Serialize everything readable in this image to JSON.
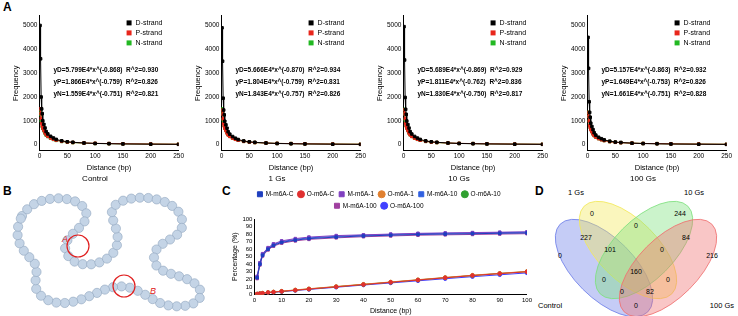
{
  "panel_labels": [
    "A",
    "B",
    "C",
    "D"
  ],
  "chart_data": [
    {
      "type": "line",
      "subtitle": "Control",
      "x_label": "Distance (bp)",
      "y_label": "Frequency",
      "x": [
        1,
        2,
        3,
        4,
        5,
        6,
        8,
        10,
        12,
        15,
        20,
        25,
        30,
        40,
        50,
        60,
        80,
        100,
        125,
        150,
        200,
        250
      ],
      "xlim": [
        0,
        250
      ],
      "xticks": [
        0,
        50,
        100,
        150,
        200,
        250
      ],
      "ylim": [
        -250,
        5400
      ],
      "yticks": [
        0,
        1000,
        2000,
        3000,
        4000,
        5000
      ],
      "grid": false,
      "legend": "upper right",
      "annotations": [
        "yD=5.799E4*x^(-0.868)  R^2=0.930",
        "yP=1.866E4*x^(-0.759)  R^2=0.826",
        "yN=1.559E4*x^(-0.751)  R^2=0.821"
      ],
      "series": [
        {
          "name": "D-strand",
          "color": "#000000",
          "marker": "square",
          "line_style": "solid",
          "values": [
            5000,
            3600,
            2000,
            1500,
            1300,
            1000,
            850,
            700,
            550,
            450,
            350,
            280,
            220,
            160,
            120,
            100,
            70,
            50,
            40,
            30,
            20,
            12
          ]
        },
        {
          "name": "P-strand",
          "color": "#e8261c",
          "marker": "square",
          "line_style": "solid",
          "values": [
            1500,
            1300,
            1100,
            900,
            800,
            700,
            600,
            500,
            420,
            350,
            280,
            230,
            190,
            140,
            110,
            90,
            70,
            55,
            45,
            35,
            25,
            18
          ]
        },
        {
          "name": "N-strand",
          "color": "#22b822",
          "marker": "square",
          "line_style": "solid",
          "values": [
            1400,
            1250,
            1000,
            950,
            750,
            680,
            580,
            480,
            400,
            340,
            270,
            220,
            180,
            135,
            105,
            85,
            65,
            50,
            42,
            33,
            24,
            17
          ]
        }
      ]
    },
    {
      "type": "line",
      "subtitle": "1 Gs",
      "x_label": "Distance (bp)",
      "y_label": "Frequency",
      "x": [
        1,
        2,
        3,
        4,
        5,
        6,
        8,
        10,
        12,
        15,
        20,
        25,
        30,
        40,
        50,
        60,
        80,
        100,
        125,
        150,
        200,
        250
      ],
      "xlim": [
        0,
        250
      ],
      "xticks": [
        0,
        50,
        100,
        150,
        200,
        250
      ],
      "ylim": [
        -250,
        5400
      ],
      "yticks": [
        0,
        1000,
        2000,
        3000,
        4000,
        5000
      ],
      "grid": false,
      "legend": "upper right",
      "annotations": [
        "yD=5.666E4*x^(-0.870)  R^2=0.934",
        "yP=1.804E4*x^(-0.759)  R^2=0.831",
        "yN=1.843E4*x^(-0.757)  R^2=0.826"
      ],
      "series": [
        {
          "name": "D-strand",
          "color": "#000000",
          "marker": "square",
          "line_style": "solid",
          "values": [
            4900,
            3500,
            1950,
            1450,
            1250,
            980,
            830,
            690,
            540,
            440,
            340,
            270,
            215,
            155,
            118,
            98,
            68,
            48,
            38,
            29,
            19,
            11
          ]
        },
        {
          "name": "P-strand",
          "color": "#e8261c",
          "marker": "square",
          "line_style": "solid",
          "values": [
            1450,
            1280,
            1080,
            880,
            780,
            690,
            590,
            490,
            410,
            345,
            275,
            225,
            185,
            138,
            108,
            88,
            68,
            53,
            44,
            34,
            24,
            17
          ]
        },
        {
          "name": "N-strand",
          "color": "#22b822",
          "marker": "square",
          "line_style": "solid",
          "values": [
            1500,
            1300,
            1050,
            960,
            790,
            700,
            600,
            495,
            415,
            350,
            278,
            226,
            186,
            139,
            108,
            87,
            67,
            52,
            43,
            34,
            25,
            18
          ]
        }
      ]
    },
    {
      "type": "line",
      "subtitle": "10 Gs",
      "x_label": "Distance (bp)",
      "y_label": "Frequency",
      "x": [
        1,
        2,
        3,
        4,
        5,
        6,
        8,
        10,
        12,
        15,
        20,
        25,
        30,
        40,
        50,
        60,
        80,
        100,
        125,
        150,
        200,
        250
      ],
      "xlim": [
        0,
        250
      ],
      "xticks": [
        0,
        50,
        100,
        150,
        200,
        250
      ],
      "ylim": [
        -250,
        5400
      ],
      "yticks": [
        0,
        1000,
        2000,
        3000,
        4000,
        5000
      ],
      "grid": false,
      "legend": "upper right",
      "annotations": [
        "yD=5.689E4*x^(-0.869)  R^2=0.929",
        "yP=1.811E4*x^(-0.762)  R^2=0.836",
        "yN=1.830E4*x^(-0.750)  R^2=0.817"
      ],
      "series": [
        {
          "name": "D-strand",
          "color": "#000000",
          "marker": "square",
          "line_style": "solid",
          "values": [
            4950,
            3550,
            1980,
            1480,
            1270,
            990,
            840,
            695,
            545,
            445,
            345,
            275,
            218,
            158,
            119,
            99,
            69,
            49,
            39,
            30,
            20,
            12
          ]
        },
        {
          "name": "P-strand",
          "color": "#e8261c",
          "marker": "square",
          "line_style": "solid",
          "values": [
            1460,
            1290,
            1090,
            890,
            790,
            695,
            595,
            492,
            412,
            346,
            276,
            226,
            186,
            139,
            109,
            89,
            69,
            54,
            44,
            34,
            24,
            17
          ]
        },
        {
          "name": "N-strand",
          "color": "#22b822",
          "marker": "square",
          "line_style": "solid",
          "values": [
            1480,
            1290,
            1040,
            955,
            780,
            695,
            595,
            490,
            412,
            348,
            276,
            224,
            185,
            138,
            107,
            86,
            66,
            51,
            43,
            33,
            24,
            17
          ]
        }
      ]
    },
    {
      "type": "line",
      "subtitle": "100 Gs",
      "x_label": "Distance (bp)",
      "y_label": "Frequency",
      "x": [
        1,
        2,
        3,
        4,
        5,
        6,
        8,
        10,
        12,
        15,
        20,
        25,
        30,
        40,
        50,
        60,
        80,
        100,
        125,
        150,
        200,
        250
      ],
      "xlim": [
        0,
        250
      ],
      "xticks": [
        0,
        50,
        100,
        150,
        200,
        250
      ],
      "ylim": [
        -250,
        5400
      ],
      "yticks": [
        0,
        1000,
        2000,
        3000,
        4000,
        5000
      ],
      "grid": false,
      "legend": "upper right",
      "annotations": [
        "yD=5.157E4*x^(-0.863)  R^2=0.932",
        "yP=1.649E4*x^(-0.753)  R^2=0.826",
        "yN=1.661E4*x^(-0.751)  R^2=0.828"
      ],
      "series": [
        {
          "name": "D-strand",
          "color": "#000000",
          "marker": "square",
          "line_style": "solid",
          "values": [
            4500,
            3200,
            1800,
            1350,
            1150,
            900,
            760,
            630,
            500,
            400,
            310,
            250,
            200,
            145,
            108,
            90,
            62,
            45,
            36,
            27,
            18,
            10
          ]
        },
        {
          "name": "P-strand",
          "color": "#e8261c",
          "marker": "square",
          "line_style": "solid",
          "values": [
            1350,
            1180,
            990,
            810,
            720,
            630,
            540,
            450,
            380,
            318,
            252,
            207,
            171,
            126,
            99,
            81,
            63,
            50,
            41,
            32,
            23,
            16
          ]
        },
        {
          "name": "N-strand",
          "color": "#22b822",
          "marker": "square",
          "line_style": "solid",
          "values": [
            1360,
            1190,
            1000,
            820,
            725,
            635,
            545,
            452,
            382,
            320,
            254,
            208,
            172,
            127,
            100,
            82,
            63,
            50,
            41,
            32,
            23,
            16
          ]
        }
      ]
    },
    {
      "type": "line",
      "x_label": "Distance (bp)",
      "y_label": "Percentage (%)",
      "x": [
        1,
        2,
        3,
        5,
        7,
        10,
        15,
        20,
        30,
        40,
        50,
        60,
        70,
        80,
        90,
        100
      ],
      "xlim": [
        0,
        100
      ],
      "xticks": [
        0,
        10,
        20,
        30,
        40,
        50,
        60,
        70,
        80,
        90,
        100
      ],
      "ylim": [
        0,
        100
      ],
      "yticks": [
        0,
        10,
        20,
        30,
        40,
        50,
        60,
        70,
        80,
        90,
        100
      ],
      "grid": false,
      "legend": "top",
      "series": [
        {
          "name": "M-m6A-C",
          "color": "#1f3fbf",
          "marker": "square",
          "line_style": "solid",
          "values": [
            22,
            40,
            52,
            60,
            65,
            69,
            72,
            74,
            76,
            77.5,
            78.5,
            79.5,
            80,
            80.5,
            81,
            81.5
          ]
        },
        {
          "name": "O-m6A-C",
          "color": "#e03030",
          "marker": "circle",
          "line_style": "solid",
          "values": [
            0.5,
            1,
            1.5,
            2.5,
            3,
            4,
            5.5,
            7,
            10,
            13,
            16,
            19,
            22,
            25,
            27.5,
            30
          ]
        },
        {
          "name": "M-m6A-1",
          "color": "#8040c0",
          "marker": "square",
          "line_style": "solid",
          "values": [
            24,
            42,
            54,
            62,
            67,
            71,
            74,
            76,
            78,
            79,
            80,
            81,
            81.5,
            82,
            82.5,
            83
          ]
        },
        {
          "name": "O-m6A-1",
          "color": "#e08030",
          "marker": "circle",
          "line_style": "solid",
          "values": [
            0.6,
            1.1,
            1.7,
            2.7,
            3.3,
            4.3,
            6,
            7.5,
            10.5,
            13.5,
            16.5,
            19.5,
            22.5,
            25.5,
            28,
            30.5
          ]
        },
        {
          "name": "M-m6A-10",
          "color": "#3060e0",
          "marker": "square",
          "line_style": "solid",
          "values": [
            23,
            41,
            53,
            61,
            66,
            70,
            73,
            75,
            77,
            78.5,
            79.5,
            80.5,
            81,
            81.5,
            82,
            82.5
          ]
        },
        {
          "name": "O-m6A-10",
          "color": "#30a030",
          "marker": "circle",
          "line_style": "solid",
          "values": [
            0.5,
            1,
            1.6,
            2.6,
            3.1,
            4.1,
            5.7,
            7.2,
            10.2,
            13.2,
            16.2,
            19.2,
            22.2,
            25,
            27.8,
            30.2
          ]
        },
        {
          "name": "M-m6A-100",
          "color": "#a040a0",
          "marker": "square",
          "line_style": "solid",
          "values": [
            21,
            39,
            51,
            59,
            64,
            68,
            71,
            73,
            75,
            76.5,
            77.5,
            78.5,
            79,
            79.5,
            80,
            80.5
          ]
        },
        {
          "name": "O-m6A-100",
          "color": "#4040ff",
          "marker": "circle",
          "line_style": "solid",
          "values": [
            0.4,
            0.9,
            1.4,
            2.3,
            2.8,
            3.7,
            5.2,
            6.6,
            9.5,
            12.4,
            15.2,
            18,
            20.8,
            23.5,
            26,
            28.5
          ]
        }
      ]
    }
  ],
  "diagram": {
    "markers": [
      "A",
      "B"
    ]
  },
  "venn": {
    "sets": [
      {
        "name": "Control",
        "color": "#6f7fe8"
      },
      {
        "name": "1 Gs",
        "color": "#f2e85a"
      },
      {
        "name": "10 Gs",
        "color": "#7ee07e"
      },
      {
        "name": "100 Gs",
        "color": "#f07070"
      }
    ],
    "regions": [
      {
        "sets": [
          "Control"
        ],
        "value": 0
      },
      {
        "sets": [
          "1 Gs"
        ],
        "value": 0
      },
      {
        "sets": [
          "10 Gs"
        ],
        "value": 244
      },
      {
        "sets": [
          "100 Gs"
        ],
        "value": 216
      },
      {
        "sets": [
          "Control",
          "1 Gs"
        ],
        "value": 227
      },
      {
        "sets": [
          "1 Gs",
          "10 Gs"
        ],
        "value": 0
      },
      {
        "sets": [
          "10 Gs",
          "100 Gs"
        ],
        "value": 84
      },
      {
        "sets": [
          "Control",
          "10 Gs"
        ],
        "value": 0
      },
      {
        "sets": [
          "1 Gs",
          "100 Gs"
        ],
        "value": 0
      },
      {
        "sets": [
          "Control",
          "100 Gs"
        ],
        "value": 0
      },
      {
        "sets": [
          "Control",
          "1 Gs",
          "10 Gs"
        ],
        "value": 101
      },
      {
        "sets": [
          "1 Gs",
          "10 Gs",
          "100 Gs"
        ],
        "value": 0
      },
      {
        "sets": [
          "Control",
          "1 Gs",
          "100 Gs"
        ],
        "value": 0
      },
      {
        "sets": [
          "Control",
          "10 Gs",
          "100 Gs"
        ],
        "value": 82
      },
      {
        "sets": [
          "Control",
          "1 Gs",
          "10 Gs",
          "100 Gs"
        ],
        "value": 160
      }
    ]
  }
}
